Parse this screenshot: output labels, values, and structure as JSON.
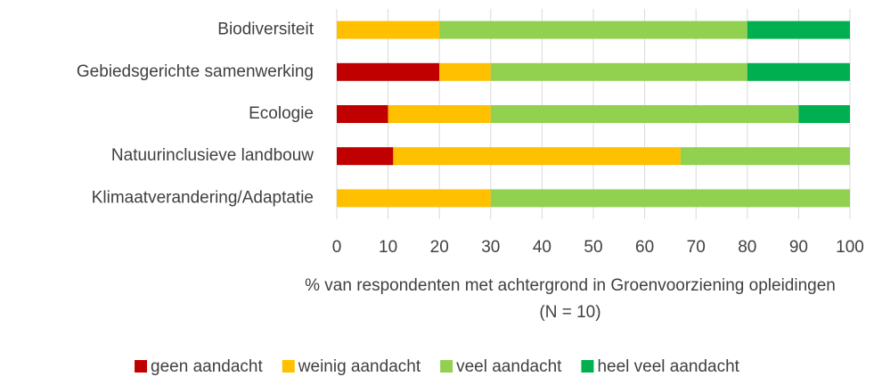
{
  "chart_data": {
    "type": "stacked-barh",
    "categories": [
      "Biodiversiteit",
      "Gebiedsgerichte samenwerking",
      "Ecologie",
      "Natuurinclusieve landbouw",
      "Klimaatverandering/Adaptatie"
    ],
    "series": [
      {
        "name": "geen aandacht",
        "color": "#c00000",
        "values": [
          0,
          20,
          10,
          11,
          0
        ]
      },
      {
        "name": "weinig aandacht",
        "color": "#ffc000",
        "values": [
          20,
          10,
          20,
          56,
          30
        ]
      },
      {
        "name": "veel aandacht",
        "color": "#92d050",
        "values": [
          60,
          50,
          60,
          33,
          70
        ]
      },
      {
        "name": "heel veel aandacht",
        "color": "#00b050",
        "values": [
          20,
          20,
          10,
          0,
          0
        ]
      }
    ],
    "xlim": [
      0,
      100
    ],
    "xticks": [
      0,
      10,
      20,
      30,
      40,
      50,
      60,
      70,
      80,
      90,
      100
    ],
    "xlabel": [
      "% van respondenten met achtergrond in Groenvoorziening opleidingen",
      "(N = 10)"
    ],
    "grid": true,
    "legend": "bottom"
  }
}
